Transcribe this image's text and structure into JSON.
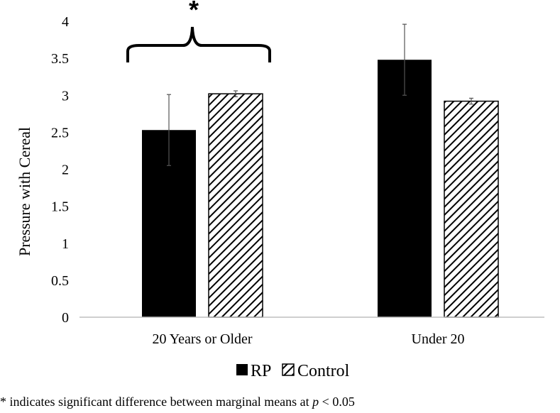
{
  "chart_data": {
    "type": "bar",
    "categories": [
      "20 Years or Older",
      "Under 20"
    ],
    "series": [
      {
        "name": "RP",
        "values": [
          2.53,
          3.48
        ],
        "errors": [
          0.48,
          0.48
        ],
        "fill": "solid",
        "color": "#000000"
      },
      {
        "name": "Control",
        "values": [
          3.02,
          2.92
        ],
        "errors": [
          0.04,
          0.04
        ],
        "fill": "hatched",
        "color": "#000000"
      }
    ],
    "ylabel": "Pressure with Cereal",
    "xlabel": "",
    "ylim": [
      0,
      4
    ],
    "yticks": [
      0,
      0.5,
      1,
      1.5,
      2,
      2.5,
      3,
      3.5,
      4
    ],
    "ytick_labels": [
      "0",
      "0.5",
      "1",
      "1.5",
      "2",
      "2.5",
      "3",
      "3.5",
      "4"
    ],
    "grid": false,
    "legend_position": "bottom",
    "annotations": [
      {
        "text": "*",
        "target_category": "20 Years or Older",
        "shape": "brace"
      }
    ]
  },
  "footnote": {
    "prefix": "* indicates significant difference between marginal means at ",
    "italic": "p",
    "suffix": " < 0.05"
  }
}
